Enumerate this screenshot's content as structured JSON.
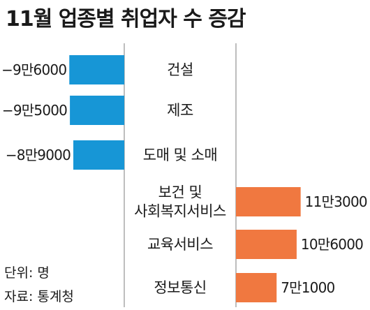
{
  "chart_data": {
    "type": "bar",
    "orientation": "horizontal-diverging",
    "title": "11월 업종별 취업자 수 증감",
    "categories": [
      [
        "건설"
      ],
      [
        "제조"
      ],
      [
        "도매 및 소매"
      ],
      [
        "보건 및",
        "사회복지서비스"
      ],
      [
        "교육서비스"
      ],
      [
        "정보통신"
      ]
    ],
    "values": [
      -96000,
      -95000,
      -89000,
      113000,
      106000,
      71000
    ],
    "value_labels": [
      "−9만6000",
      "−9만5000",
      "−8만9000",
      "11만3000",
      "10만6000",
      "7만1000"
    ],
    "colors": {
      "negative": "#1796d6",
      "positive": "#f07840",
      "axis": "#9a9a9a"
    },
    "unit_note": "단위: 명",
    "source_note": "자료: 통계청"
  }
}
